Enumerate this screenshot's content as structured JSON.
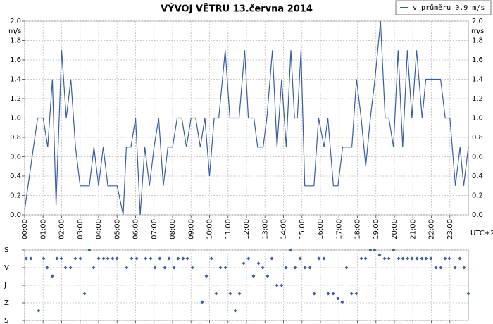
{
  "chart_data": [
    {
      "type": "line",
      "title": "VÝVOJ VĚTRU  13.června 2014",
      "y_label": "m/s",
      "x_note": "UTC+2",
      "xlim": [
        0,
        24
      ],
      "xticks": [
        {
          "value": 0,
          "label": "00:00"
        },
        {
          "value": 1,
          "label": "01:00"
        },
        {
          "value": 2,
          "label": "02:00"
        },
        {
          "value": 3,
          "label": "03:00"
        },
        {
          "value": 4,
          "label": "04:00"
        },
        {
          "value": 5,
          "label": "05:00"
        },
        {
          "value": 6,
          "label": "06:00"
        },
        {
          "value": 7,
          "label": "07:00"
        },
        {
          "value": 8,
          "label": "08:00"
        },
        {
          "value": 9,
          "label": "09:00"
        },
        {
          "value": 10,
          "label": "10:00"
        },
        {
          "value": 11,
          "label": "11:00"
        },
        {
          "value": 12,
          "label": "12:00"
        },
        {
          "value": 13,
          "label": "13:00"
        },
        {
          "value": 14,
          "label": "14:00"
        },
        {
          "value": 15,
          "label": "15:00"
        },
        {
          "value": 16,
          "label": "16:00"
        },
        {
          "value": 17,
          "label": "17:00"
        },
        {
          "value": 18,
          "label": "18:00"
        },
        {
          "value": 19,
          "label": "19:00"
        },
        {
          "value": 20,
          "label": "20:00"
        },
        {
          "value": 21,
          "label": "21:00"
        },
        {
          "value": 22,
          "label": "22:00"
        },
        {
          "value": 23,
          "label": "23:00"
        }
      ],
      "ylim": [
        0,
        2
      ],
      "yticks": [
        {
          "value": 0,
          "label": "0.0"
        },
        0.2,
        0.4,
        0.6,
        0.8,
        {
          "value": 1,
          "label": "1.0"
        },
        1.2,
        1.4,
        1.6,
        1.8,
        {
          "value": 2,
          "label": "2.0"
        }
      ],
      "grid": true,
      "legend": "top-right",
      "x": [
        0,
        0.7,
        1,
        1.25,
        1.5,
        1.7,
        2,
        2.25,
        2.5,
        2.75,
        3,
        3.5,
        3.75,
        4,
        4.25,
        4.5,
        5,
        5.33,
        5.5,
        5.75,
        6,
        6.25,
        6.5,
        6.75,
        7,
        7.25,
        7.5,
        7.75,
        8,
        8.25,
        8.5,
        8.75,
        9,
        9.25,
        9.5,
        9.75,
        10,
        10.25,
        10.5,
        10.85,
        11.1,
        11.6,
        11.9,
        12.1,
        12.4,
        12.6,
        12.9,
        13.1,
        13.4,
        13.65,
        13.9,
        14.15,
        14.4,
        14.6,
        14.75,
        14.95,
        15.15,
        15.65,
        15.9,
        16.2,
        16.4,
        16.7,
        16.95,
        17.2,
        17.7,
        17.95,
        18.2,
        18.45,
        18.7,
        18.95,
        19.25,
        19.5,
        19.7,
        19.95,
        20.2,
        20.45,
        20.7,
        20.95,
        21.2,
        21.5,
        21.7,
        22.5,
        22.75,
        23,
        23.3,
        23.55,
        23.75,
        24
      ],
      "series": [
        {
          "name": "v průměru 0.9 m/s",
          "color": "#3a5fa0",
          "values": [
            0.05,
            1,
            1,
            0.7,
            1.4,
            0.1,
            1.7,
            1,
            1.4,
            0.7,
            0.3,
            0.3,
            0.7,
            0.3,
            0.7,
            0.3,
            0.3,
            0,
            0.7,
            0.7,
            1,
            0,
            0.7,
            0.3,
            0.7,
            1,
            0.3,
            0.7,
            0.7,
            1,
            1,
            0.7,
            1,
            1,
            0.7,
            1,
            0.4,
            1,
            1,
            1.7,
            1,
            1,
            1.7,
            1,
            1,
            0.7,
            0.7,
            1,
            1.7,
            0.7,
            1.4,
            0.7,
            1.7,
            1,
            1,
            1.7,
            0.3,
            0.3,
            1,
            0.7,
            1,
            0.3,
            0.3,
            0.7,
            0.7,
            1.4,
            1,
            0.5,
            1,
            1.4,
            2,
            1,
            1,
            0.7,
            1.7,
            0.7,
            1.7,
            1,
            1.7,
            1,
            1.4,
            1.4,
            1,
            1,
            0.3,
            0.7,
            0.3,
            0.7
          ]
        }
      ]
    },
    {
      "type": "scatter",
      "xlim": [
        0,
        24
      ],
      "xticks": [
        0,
        1,
        2,
        3,
        4,
        5,
        6,
        7,
        8,
        9,
        10,
        11,
        12,
        13,
        14,
        15,
        16,
        17,
        18,
        19,
        20,
        21,
        22,
        23
      ],
      "ylim": [
        0,
        360
      ],
      "yticks": [
        {
          "value": 0,
          "label": "S"
        },
        {
          "value": 90,
          "label": "V"
        },
        {
          "value": 180,
          "label": "J"
        },
        {
          "value": 270,
          "label": "Z"
        },
        {
          "value": 360,
          "label": "S"
        }
      ],
      "grid": true,
      "color": "#3d5c99",
      "x": [
        0.08,
        0.34,
        0.76,
        1.03,
        1.22,
        1.49,
        1.75,
        1.98,
        2.21,
        2.48,
        2.74,
        3.01,
        3.24,
        3.5,
        3.73,
        4.0,
        4.27,
        4.5,
        4.76,
        4.99,
        5.52,
        5.79,
        6.06,
        6.55,
        6.82,
        7.05,
        7.31,
        7.58,
        7.81,
        8.08,
        8.3,
        8.57,
        8.8,
        9.07,
        9.6,
        9.83,
        10.1,
        10.36,
        10.59,
        10.86,
        11.12,
        11.39,
        11.62,
        11.85,
        12.11,
        12.38,
        12.65,
        12.88,
        13.14,
        13.37,
        13.64,
        13.9,
        14.13,
        14.4,
        14.63,
        14.9,
        15.16,
        15.43,
        15.66,
        15.92,
        16.19,
        16.42,
        16.69,
        16.95,
        17.18,
        17.41,
        17.68,
        17.94,
        18.21,
        18.44,
        18.7,
        18.93,
        19.2,
        19.47,
        19.7,
        19.96,
        20.23,
        20.46,
        20.72,
        20.95,
        21.22,
        21.49,
        21.71,
        21.98,
        22.25,
        22.51,
        22.74,
        22.97,
        23.28,
        23.54,
        23.77,
        24.0
      ],
      "values": [
        43,
        43,
        310,
        43,
        90,
        133,
        43,
        43,
        90,
        90,
        43,
        43,
        223,
        0,
        90,
        43,
        43,
        43,
        43,
        43,
        90,
        43,
        43,
        43,
        43,
        90,
        43,
        90,
        43,
        90,
        43,
        43,
        43,
        90,
        266,
        133,
        43,
        223,
        90,
        90,
        223,
        310,
        223,
        68,
        43,
        133,
        68,
        90,
        133,
        43,
        180,
        180,
        90,
        0,
        90,
        43,
        90,
        90,
        223,
        43,
        43,
        223,
        223,
        248,
        266,
        90,
        223,
        223,
        43,
        43,
        0,
        0,
        25,
        43,
        43,
        0,
        43,
        43,
        43,
        43,
        43,
        43,
        43,
        43,
        90,
        90,
        43,
        43,
        90,
        43,
        90,
        223
      ]
    }
  ]
}
